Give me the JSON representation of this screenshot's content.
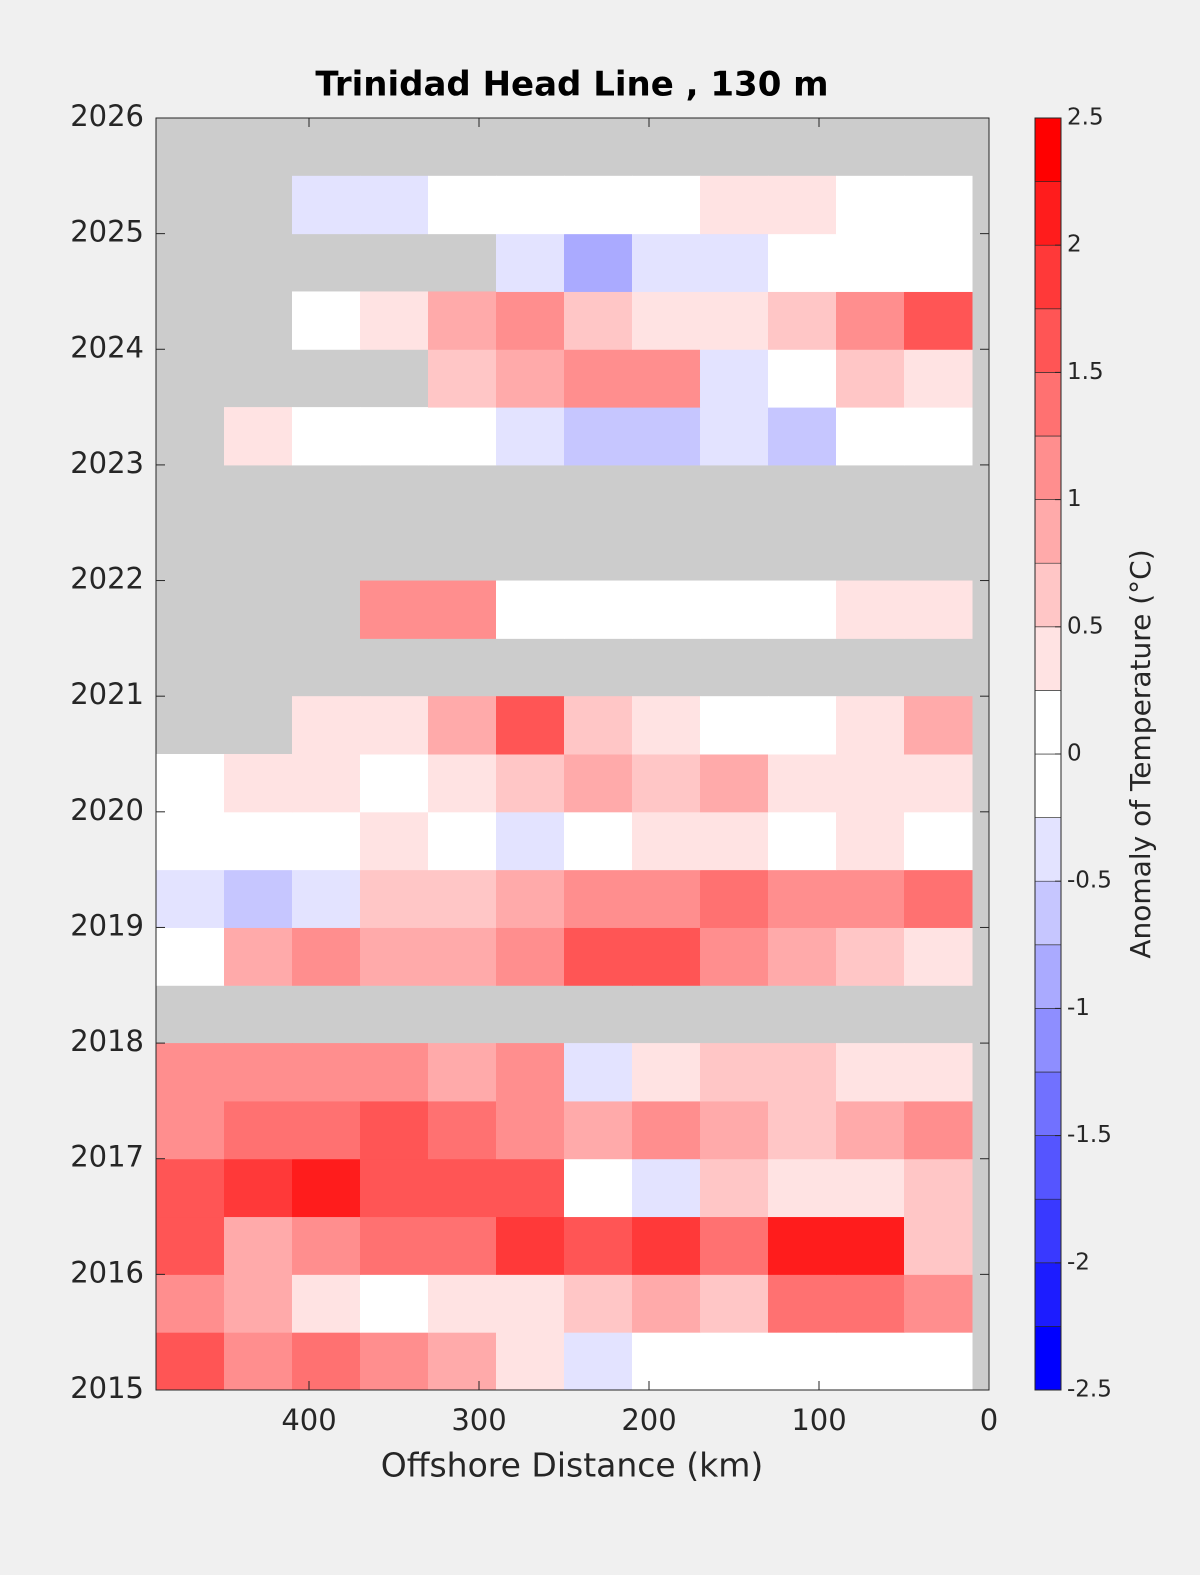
{
  "chart_data": {
    "type": "contour",
    "title": "Trinidad Head Line , 130 m",
    "x_label": "Offshore Distance (km)",
    "colorbar_label": "Anomaly of Temperature (°C)",
    "x": [
      470,
      430,
      390,
      350,
      310,
      270,
      230,
      190,
      150,
      110,
      70,
      30
    ],
    "y": [
      2015.25,
      2015.75,
      2016.25,
      2016.75,
      2017.25,
      2017.75,
      2018.25,
      2018.75,
      2019.25,
      2019.75,
      2020.25,
      2020.75,
      2021.25,
      2021.75,
      2022.25,
      2022.75,
      2023.25,
      2023.75,
      2024.25,
      2024.75,
      2025.25,
      2025.75
    ],
    "z": [
      [
        1.5,
        1.0,
        1.4,
        1.2,
        0.8,
        0.4,
        -0.3,
        -0.2,
        0.1,
        0,
        0,
        0.2
      ],
      [
        1.2,
        0.8,
        0.3,
        0.2,
        0.3,
        0.4,
        0.5,
        0.9,
        0.6,
        1.4,
        1.3,
        1.1
      ],
      [
        1.5,
        0.8,
        1.2,
        1.3,
        1.4,
        1.8,
        1.6,
        1.8,
        1.4,
        2.2,
        2.0,
        0.6
      ],
      [
        1.6,
        1.8,
        2.0,
        1.7,
        1.5,
        1.5,
        0.2,
        -0.3,
        0.6,
        0.4,
        0.3,
        0.5
      ],
      [
        1.2,
        1.3,
        1.4,
        1.5,
        1.4,
        1.2,
        0.8,
        1.0,
        0.9,
        0.6,
        0.8,
        1.0
      ],
      [
        1.0,
        1.2,
        1.2,
        1.0,
        0.8,
        1.2,
        -0.5,
        0.4,
        0.6,
        0.5,
        0.4,
        0.3
      ],
      [
        null,
        null,
        null,
        null,
        null,
        null,
        null,
        null,
        null,
        null,
        null,
        null
      ],
      [
        0.2,
        0.8,
        1.0,
        0.8,
        0.9,
        1.2,
        1.6,
        1.5,
        1.0,
        0.9,
        0.6,
        0.4
      ],
      [
        -0.4,
        -0.6,
        -0.3,
        0.5,
        0.7,
        0.8,
        1.0,
        1.0,
        1.3,
        1.0,
        1.2,
        1.4
      ],
      [
        0.2,
        0.2,
        0,
        0.3,
        0,
        -0.3,
        0.2,
        0.3,
        0.4,
        0.2,
        0.4,
        0.2
      ],
      [
        0.1,
        0.3,
        0.3,
        0.1,
        0.3,
        0.5,
        0.8,
        0.6,
        0.8,
        0.3,
        0.3,
        0.3
      ],
      [
        null,
        null,
        0.3,
        0.4,
        0.8,
        1.5,
        0.6,
        0.3,
        -0.2,
        0,
        0.3,
        0.8
      ],
      [
        null,
        null,
        null,
        null,
        null,
        null,
        null,
        null,
        null,
        null,
        null,
        null
      ],
      [
        null,
        null,
        null,
        1.0,
        1.2,
        0,
        0,
        -0.2,
        0,
        0,
        0.3,
        0.3
      ],
      [
        null,
        null,
        null,
        null,
        null,
        null,
        null,
        null,
        null,
        null,
        null,
        null
      ],
      [
        null,
        null,
        null,
        null,
        null,
        null,
        null,
        null,
        null,
        null,
        null,
        null
      ],
      [
        null,
        0.4,
        0,
        0,
        -0.1,
        -0.3,
        -0.6,
        -0.7,
        -0.5,
        -0.6,
        -0.2,
        0.1
      ],
      [
        null,
        null,
        null,
        null,
        0.5,
        0.8,
        1.0,
        1.2,
        -0.5,
        0.2,
        0.5,
        0.3
      ],
      [
        null,
        null,
        -0.2,
        0.3,
        0.8,
        1.2,
        0.5,
        0.4,
        0.3,
        0.6,
        1.0,
        1.5
      ],
      [
        null,
        null,
        null,
        null,
        null,
        -0.3,
        -1.0,
        -0.4,
        -0.3,
        -0.2,
        0,
        0.2
      ],
      [
        null,
        null,
        -0.3,
        -0.3,
        -0.2,
        0,
        0.1,
        0.1,
        0.3,
        0.3,
        0.2,
        0.1
      ],
      [
        null,
        null,
        null,
        null,
        null,
        null,
        null,
        null,
        null,
        null,
        null,
        null
      ]
    ],
    "xlim": [
      490,
      0
    ],
    "xticks": [
      400,
      300,
      200,
      100,
      0
    ],
    "ylim": [
      2015,
      2026
    ],
    "yticks": [
      2015,
      2016,
      2017,
      2018,
      2019,
      2020,
      2021,
      2022,
      2023,
      2024,
      2025,
      2026
    ],
    "clim": [
      -2.5,
      2.5
    ],
    "cticks": [
      -2.5,
      -2,
      -1.5,
      -1,
      -0.5,
      0,
      0.5,
      1,
      1.5,
      2,
      2.5
    ],
    "levels": [
      -2.5,
      -2.25,
      -2,
      -1.75,
      -1.5,
      -1.25,
      -1,
      -0.75,
      -0.5,
      -0.25,
      0,
      0.25,
      0.5,
      0.75,
      1,
      1.25,
      1.5,
      1.75,
      2,
      2.25,
      2.5
    ],
    "colormap": [
      "#0000ff",
      "#ffffff",
      "#ff0000"
    ],
    "nan_color": "#cccccc"
  }
}
